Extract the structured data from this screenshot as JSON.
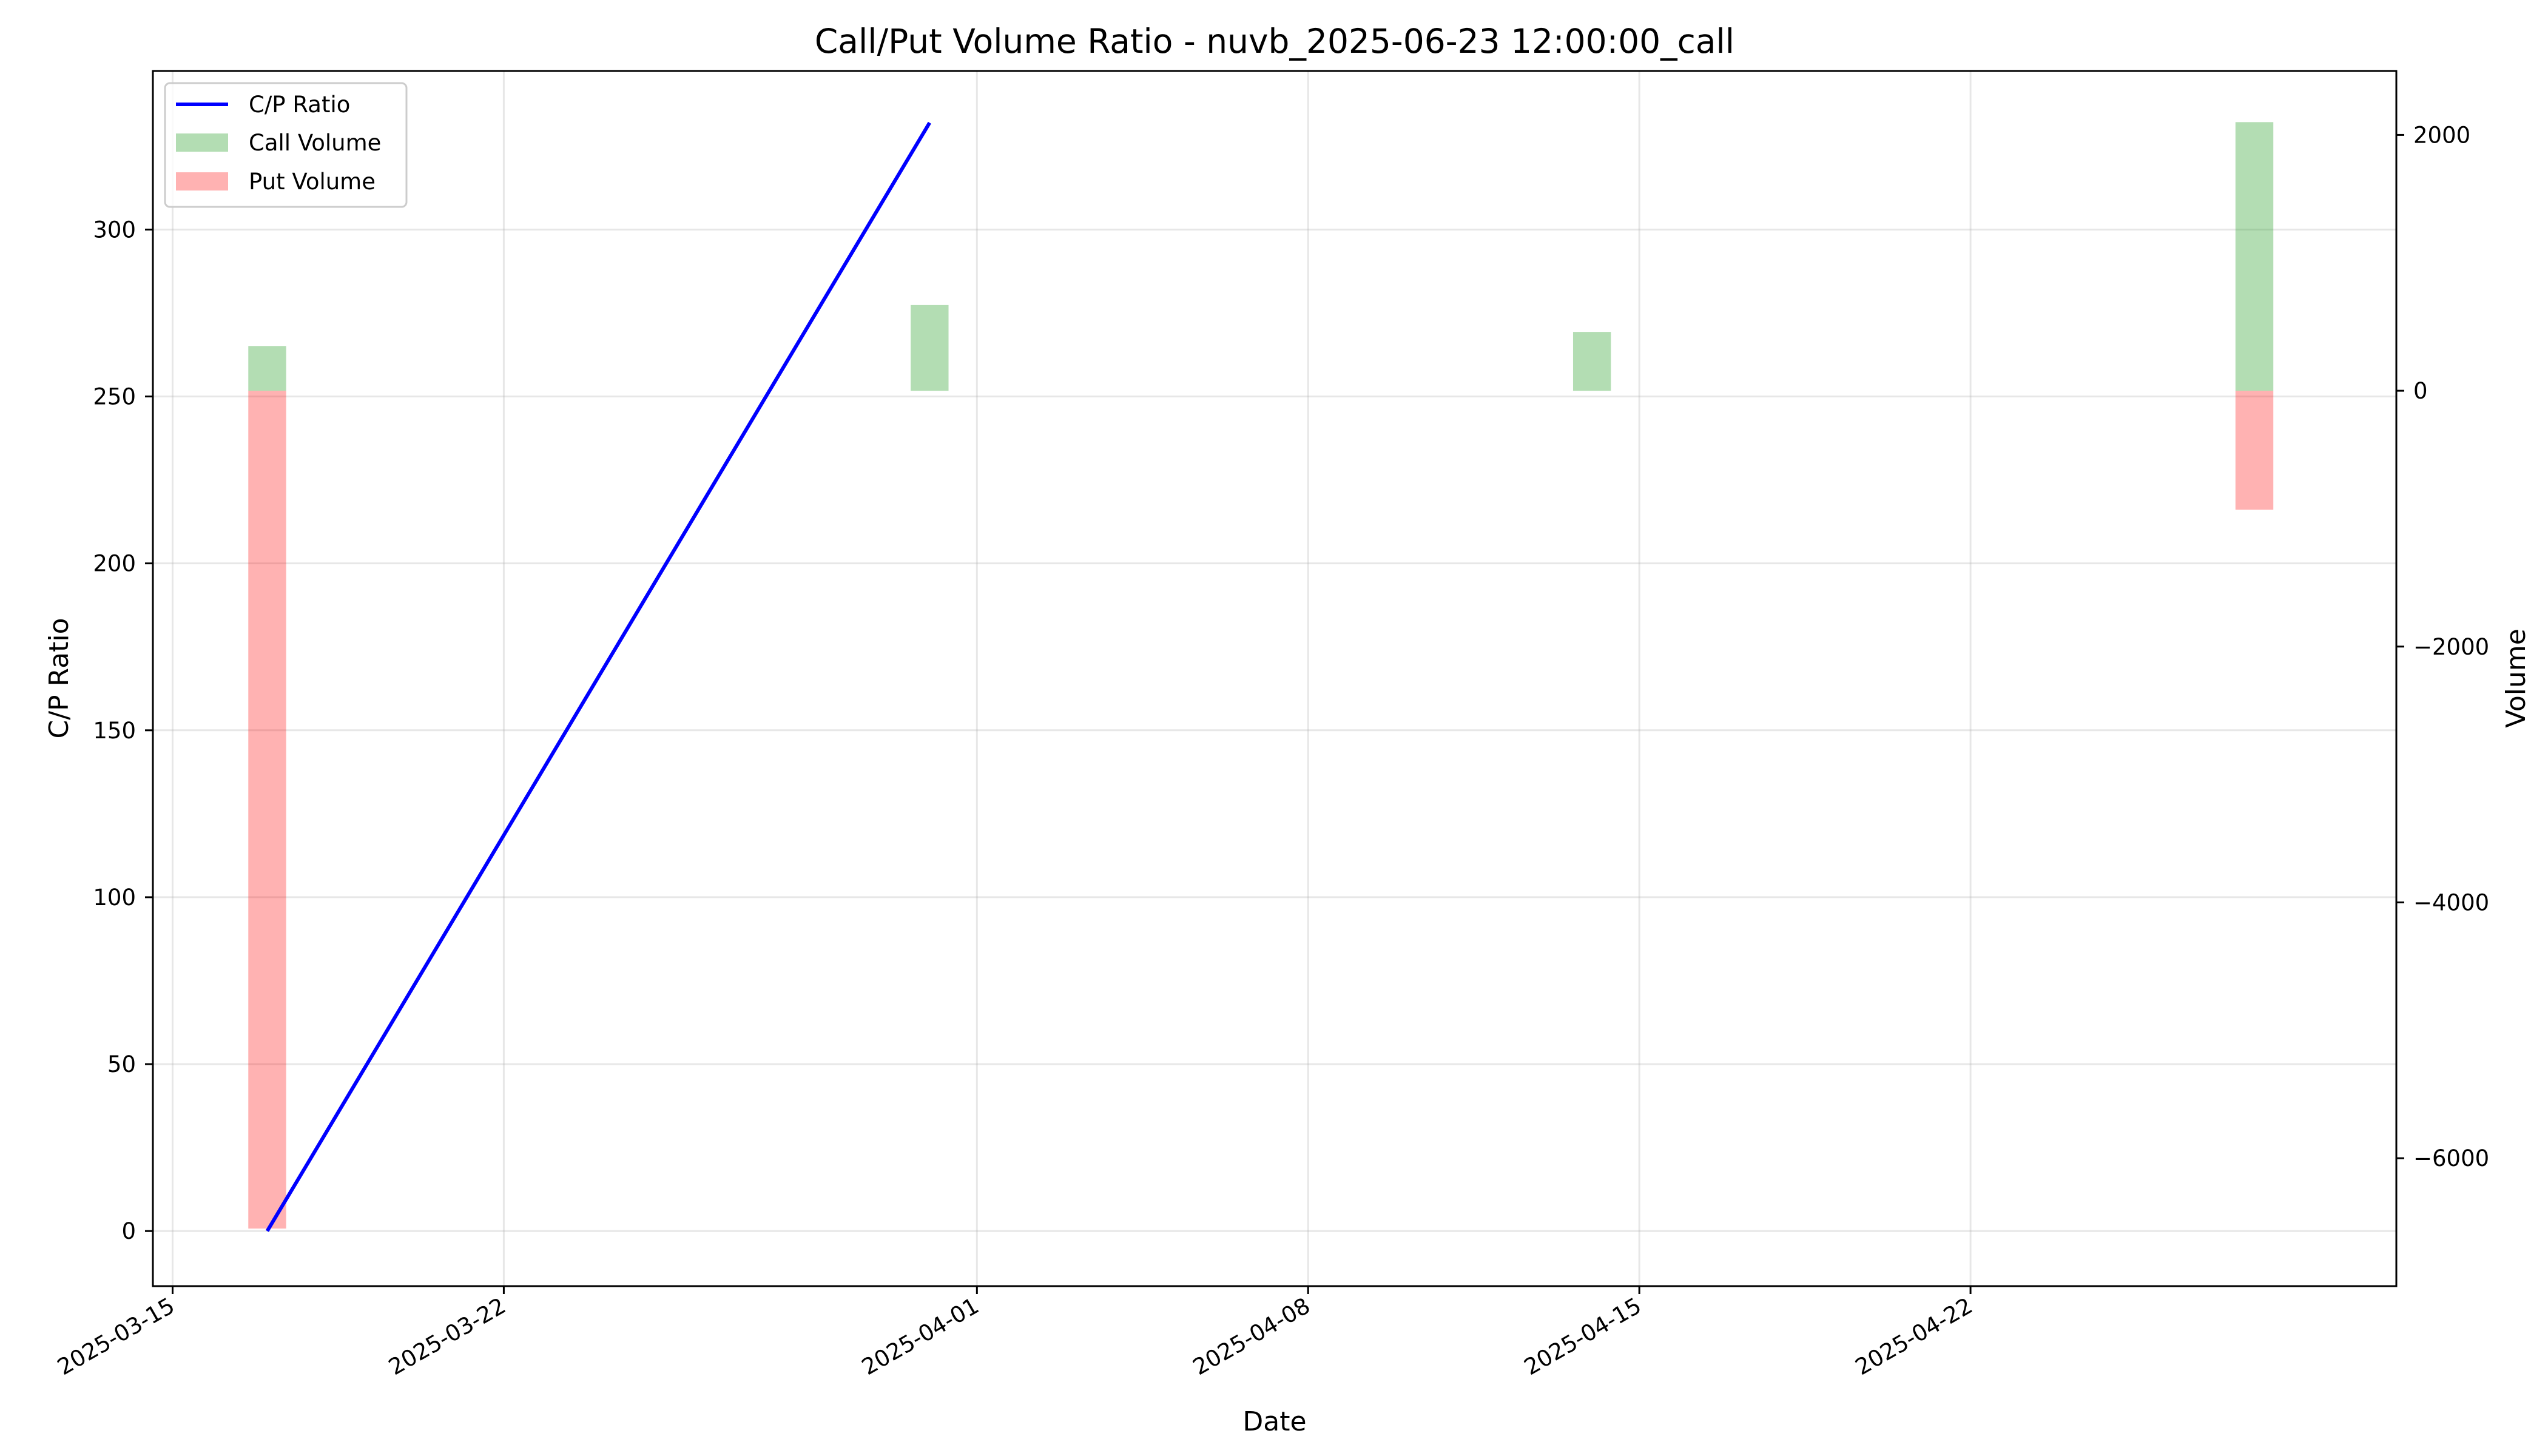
{
  "chart_data": {
    "type": "line",
    "title": "Call/Put Volume Ratio - nuvb_2025-06-23 12:00:00_call",
    "xlabel": "Date",
    "ylabel": "C/P Ratio",
    "y2label": "Volume",
    "x_ticks": [
      "2025-03-15",
      "2025-03-22",
      "2025-04-01",
      "2025-04-08",
      "2025-04-15",
      "2025-04-22"
    ],
    "y_ticks": [
      0,
      50,
      100,
      150,
      200,
      250,
      300
    ],
    "y2_ticks": [
      -6000,
      -4000,
      -2000,
      0,
      2000
    ],
    "ylim": [
      -16.5,
      347.5
    ],
    "y2lim": [
      -7000,
      2500
    ],
    "xlim": [
      "2025-03-14T14:00",
      "2025-05-01T00:00"
    ],
    "grid": true,
    "legend_position": "upper left",
    "legend": [
      "C/P Ratio",
      "Call Volume",
      "Put Volume"
    ],
    "series": [
      {
        "name": "C/P Ratio",
        "axis": "left",
        "kind": "line",
        "color": "#0000ff",
        "x": [
          "2025-03-17",
          "2025-03-31"
        ],
        "y": [
          0,
          332
        ]
      },
      {
        "name": "Call Volume",
        "axis": "right",
        "kind": "bar",
        "color": "#2ca02c",
        "x": [
          "2025-03-17",
          "2025-03-31",
          "2025-04-14",
          "2025-04-28"
        ],
        "y": [
          350,
          670,
          460,
          2100
        ]
      },
      {
        "name": "Put Volume",
        "axis": "right",
        "kind": "bar",
        "color": "#ff6666",
        "x": [
          "2025-03-17",
          "2025-04-28"
        ],
        "y": [
          -6550,
          -930
        ]
      }
    ]
  }
}
